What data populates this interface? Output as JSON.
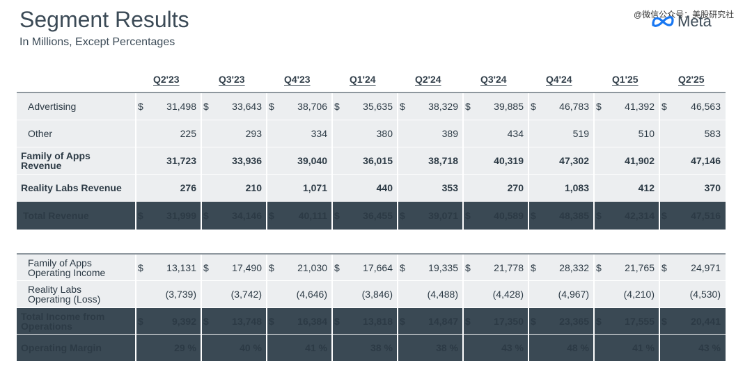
{
  "title": "Segment Results",
  "subtitle": "In Millions, Except Percentages",
  "watermark": "@微信公众号：美股研究社",
  "logo_text": "Meta",
  "columns": [
    "Q2'23",
    "Q3'23",
    "Q4'23",
    "Q1'24",
    "Q2'24",
    "Q3'24",
    "Q4'24",
    "Q1'25",
    "Q2'25"
  ],
  "currency": "$",
  "revenue_rows": [
    {
      "label": "Advertising",
      "values": [
        "31,498",
        "33,643",
        "38,706",
        "35,635",
        "38,329",
        "39,885",
        "46,783",
        "41,392",
        "46,563"
      ]
    },
    {
      "label": "Other",
      "values": [
        "225",
        "293",
        "334",
        "380",
        "389",
        "434",
        "519",
        "510",
        "583"
      ]
    },
    {
      "label_line1": "Family of Apps",
      "label_line2": "Revenue",
      "values": [
        "31,723",
        "33,936",
        "39,040",
        "36,015",
        "38,718",
        "40,319",
        "47,302",
        "41,902",
        "47,146"
      ]
    },
    {
      "label": "Reality Labs Revenue",
      "values": [
        "276",
        "210",
        "1,071",
        "440",
        "353",
        "270",
        "1,083",
        "412",
        "370"
      ]
    },
    {
      "label": "Total Revenue",
      "values": [
        "31,999",
        "34,146",
        "40,111",
        "36,455",
        "39,071",
        "40,589",
        "48,385",
        "42,314",
        "47,516"
      ]
    }
  ],
  "income_rows": [
    {
      "label_line1": "Family of Apps",
      "label_line2": "Operating Income",
      "values": [
        "13,131",
        "17,490",
        "21,030",
        "17,664",
        "19,335",
        "21,778",
        "28,332",
        "21,765",
        "24,971"
      ]
    },
    {
      "label_line1": "Reality Labs",
      "label_line2": "Operating (Loss)",
      "values": [
        "(3,739)",
        "(3,742)",
        "(4,646)",
        "(3,846)",
        "(4,488)",
        "(4,428)",
        "(4,967)",
        "(4,210)",
        "(4,530)"
      ]
    },
    {
      "label_line1": "Total Income from",
      "label_line2": "Operations",
      "values": [
        "9,392",
        "13,748",
        "16,384",
        "13,818",
        "14,847",
        "17,350",
        "23,365",
        "17,555",
        "20,441"
      ]
    },
    {
      "label": "Operating Margin",
      "values": [
        "29 %",
        "40 %",
        "41 %",
        "38 %",
        "38 %",
        "43 %",
        "48 %",
        "41 %",
        "43 %"
      ]
    }
  ]
}
